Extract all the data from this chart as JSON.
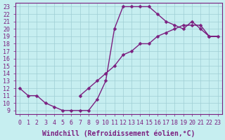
{
  "xlabel": "Windchill (Refroidissement éolien,°C)",
  "xlim": [
    -0.5,
    23.5
  ],
  "ylim": [
    8.5,
    23.5
  ],
  "xticks": [
    0,
    1,
    2,
    3,
    4,
    5,
    6,
    7,
    8,
    9,
    10,
    11,
    12,
    13,
    14,
    15,
    16,
    17,
    18,
    19,
    20,
    21,
    22,
    23
  ],
  "yticks": [
    9,
    10,
    11,
    12,
    13,
    14,
    15,
    16,
    17,
    18,
    19,
    20,
    21,
    22,
    23
  ],
  "bg_color": "#c6eef0",
  "line_color": "#7b2080",
  "grid_color": "#9ecdd4",
  "windchill_x": [
    0,
    1,
    2,
    3,
    4,
    5,
    6,
    7,
    8,
    9,
    10,
    11,
    12,
    13,
    14,
    15,
    16,
    17,
    18,
    19,
    20,
    21,
    22,
    23,
    22,
    21,
    20,
    19,
    18,
    17,
    16,
    15,
    14,
    13,
    12,
    11,
    10,
    9,
    8,
    7
  ],
  "temp_y": [
    12,
    11,
    11,
    10,
    9.5,
    9.0,
    9.0,
    9.0,
    9.0,
    10.5,
    13,
    20,
    23,
    23,
    23,
    23,
    22,
    21,
    20.5,
    20,
    21,
    20,
    19,
    19,
    19,
    20.5,
    20.5,
    20.5,
    20,
    19.5,
    19,
    18,
    18,
    17,
    16.5,
    15,
    14,
    13,
    12,
    11
  ],
  "marker": "D",
  "marker_size": 2.5,
  "line_width": 1.0,
  "xlabel_fontsize": 7,
  "tick_fontsize": 6
}
